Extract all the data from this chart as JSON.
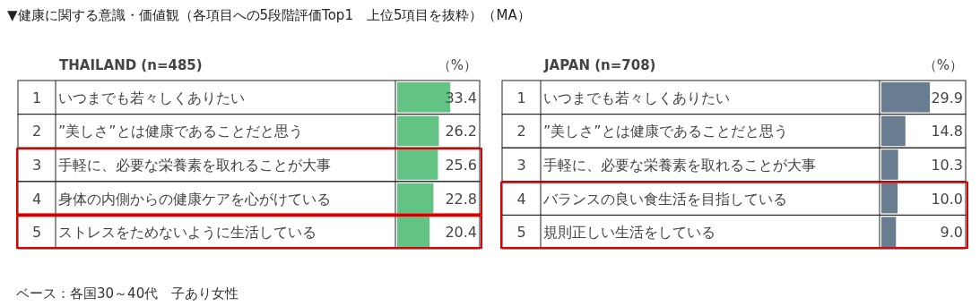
{
  "chart_data": [
    {
      "type": "bar",
      "orientation": "horizontal",
      "title": "▼健康に関する意識・価値観（各項目への5段階評価Top1　上位5項目を抜粋）（MA）",
      "subtitle": "THAILAND (n=485)",
      "xlabel": "（%）",
      "categories": [
        "いつまでも若々しくありたい",
        "”美しさ”とは健康であることだと思う",
        "手軽に、必要な栄養素を取れることが大事",
        "身体の内側からの健康ケアを心がけている",
        "ストレスをためないように生活している"
      ],
      "values": [
        33.4,
        26.2,
        25.6,
        22.8,
        20.4
      ],
      "color": "#63c384",
      "data_labels": true,
      "annotations": [
        "1",
        "2",
        "3",
        "4",
        "5",
        "ベース：各国30～40代　子あり女性"
      ]
    },
    {
      "type": "bar",
      "orientation": "horizontal",
      "subtitle": "JAPAN (n=708)",
      "xlabel": "（%）",
      "categories": [
        "いつまでも若々しくありたい",
        "”美しさ”とは健康であることだと思う",
        "手軽に、必要な栄養素を取れることが大事",
        "バランスの良い食生活を目指している",
        "規則正しい生活をしている"
      ],
      "values": [
        29.9,
        14.8,
        10.3,
        10.0,
        9.0
      ],
      "color": "#687d90",
      "data_labels": true,
      "value_labels": [
        "29.9",
        "14.8",
        "10.3",
        "10.0",
        "9.0"
      ],
      "annotations": [
        "1",
        "2",
        "3",
        "4",
        "5"
      ]
    }
  ]
}
